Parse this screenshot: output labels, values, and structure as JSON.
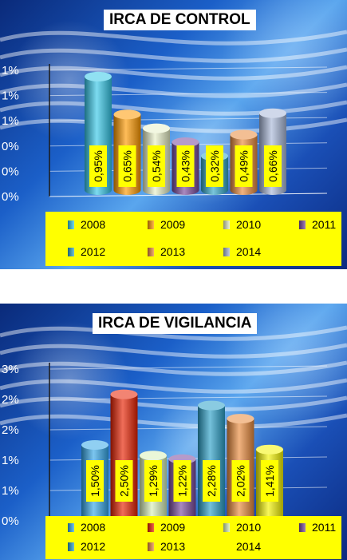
{
  "chart_data": [
    {
      "type": "bar",
      "title": "IRCA DE CONTROL",
      "categories": [
        "2008",
        "2009",
        "2010",
        "2011",
        "2012",
        "2013",
        "2014"
      ],
      "values": [
        0.95,
        0.65,
        0.54,
        0.43,
        0.32,
        0.49,
        0.66
      ],
      "value_labels": [
        "0,95%",
        "0,65%",
        "0,54%",
        "0,43%",
        "0,32%",
        "0,49%",
        "0,66%"
      ],
      "ylim": [
        0,
        1.0
      ],
      "y_tick_labels": [
        "0%",
        "0%",
        "0%",
        "1%",
        "1%",
        "1%"
      ],
      "legend": [
        "2008",
        "2009",
        "2010",
        "2011",
        "2012",
        "2013",
        "2014"
      ],
      "legend_placement": "bottom",
      "colors": [
        "#35c8e8",
        "#ff9a00",
        "#e8f0c8",
        "#7a4a9c",
        "#33a8c8",
        "#e98a3c",
        "#a9b8d8"
      ],
      "grid": true
    },
    {
      "type": "bar",
      "title": "IRCA DE VIGILANCIA",
      "categories": [
        "2008",
        "2009",
        "2010",
        "2011",
        "2012",
        "2013",
        "2014"
      ],
      "values": [
        1.5,
        2.5,
        1.29,
        1.22,
        2.28,
        2.02,
        1.41
      ],
      "value_labels": [
        "1,50%",
        "2,50%",
        "1,29%",
        "1,22%",
        "2,28%",
        "2,02%",
        "1,41%"
      ],
      "ylim": [
        0,
        3.0
      ],
      "y_tick_labels": [
        "0%",
        "1%",
        "1%",
        "2%",
        "2%",
        "3%"
      ],
      "legend": [
        "2008",
        "2009",
        "2010",
        "2011",
        "2012",
        "2013",
        "2014"
      ],
      "legend_placement": "bottom",
      "colors": [
        "#35a8e8",
        "#e82000",
        "#d8f0b8",
        "#7a4a9c",
        "#2aa0c8",
        "#e98a3c",
        "#f4f400"
      ],
      "grid": true
    }
  ]
}
